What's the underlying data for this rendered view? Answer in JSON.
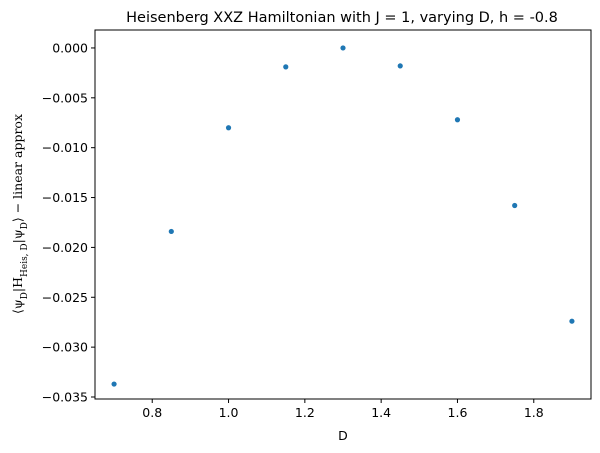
{
  "chart_data": {
    "type": "scatter",
    "title": "Heisenberg XXZ Hamiltonian with J = 1, varying D, h = -0.8",
    "xlabel": "D",
    "ylabel": {
      "main": "⟨ψ",
      "sub1": "D",
      "mid": "|H",
      "sub2": "Heis, D",
      "mid2": "|ψ",
      "sub3": "D",
      "end": "⟩ − linear approx"
    },
    "xlim": [
      0.65,
      1.95
    ],
    "ylim": [
      -0.0352,
      0.0018
    ],
    "xticks": [
      0.8,
      1.0,
      1.2,
      1.4,
      1.6,
      1.8
    ],
    "xtick_labels": [
      "0.8",
      "1.0",
      "1.2",
      "1.4",
      "1.6",
      "1.8"
    ],
    "yticks": [
      0.0,
      -0.005,
      -0.01,
      -0.015,
      -0.02,
      -0.025,
      -0.03,
      -0.035
    ],
    "ytick_labels": [
      "0.000",
      "−0.005",
      "−0.010",
      "−0.015",
      "−0.020",
      "−0.025",
      "−0.030",
      "−0.035"
    ],
    "grid": false,
    "color": "#1f77b4",
    "points": [
      {
        "x": 0.7,
        "y": -0.0337
      },
      {
        "x": 0.85,
        "y": -0.0184
      },
      {
        "x": 1.0,
        "y": -0.008
      },
      {
        "x": 1.15,
        "y": -0.0019
      },
      {
        "x": 1.3,
        "y": 0.0
      },
      {
        "x": 1.45,
        "y": -0.0018
      },
      {
        "x": 1.6,
        "y": -0.0072
      },
      {
        "x": 1.75,
        "y": -0.0158
      },
      {
        "x": 1.9,
        "y": -0.0274
      }
    ]
  }
}
